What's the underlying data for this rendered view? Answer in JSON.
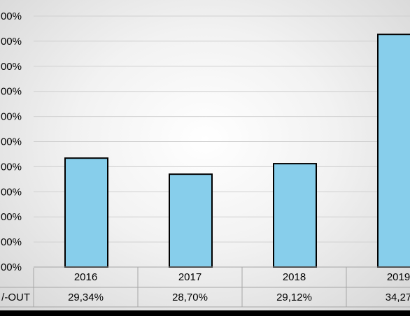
{
  "chart_data": {
    "type": "bar",
    "title": "",
    "xlabel": "",
    "ylabel": "",
    "categories": [
      "2016",
      "2017",
      "2018",
      "2019"
    ],
    "series": [
      {
        "name": "TURNOVER/PAY-OUT",
        "values": [
          29.34,
          28.7,
          29.12,
          34.27
        ]
      }
    ],
    "data_table": {
      "row_label": "/-OUT",
      "values": [
        "29,34%",
        "28,70%",
        "29,12%",
        "34,27"
      ]
    },
    "y_tick_labels": [
      "00%",
      "00%",
      "00%",
      "00%",
      "00%",
      "00%",
      "00%",
      "00%",
      "00%",
      "00%",
      "00%"
    ],
    "ylim": [
      25.0,
      35.0
    ],
    "ytick_step": 1.0,
    "grid": true,
    "colors": {
      "bar_fill": "#87CEEB",
      "bar_stroke": "#000000",
      "grid": "#d0d0d0",
      "table_border": "#a6a6a6"
    }
  }
}
